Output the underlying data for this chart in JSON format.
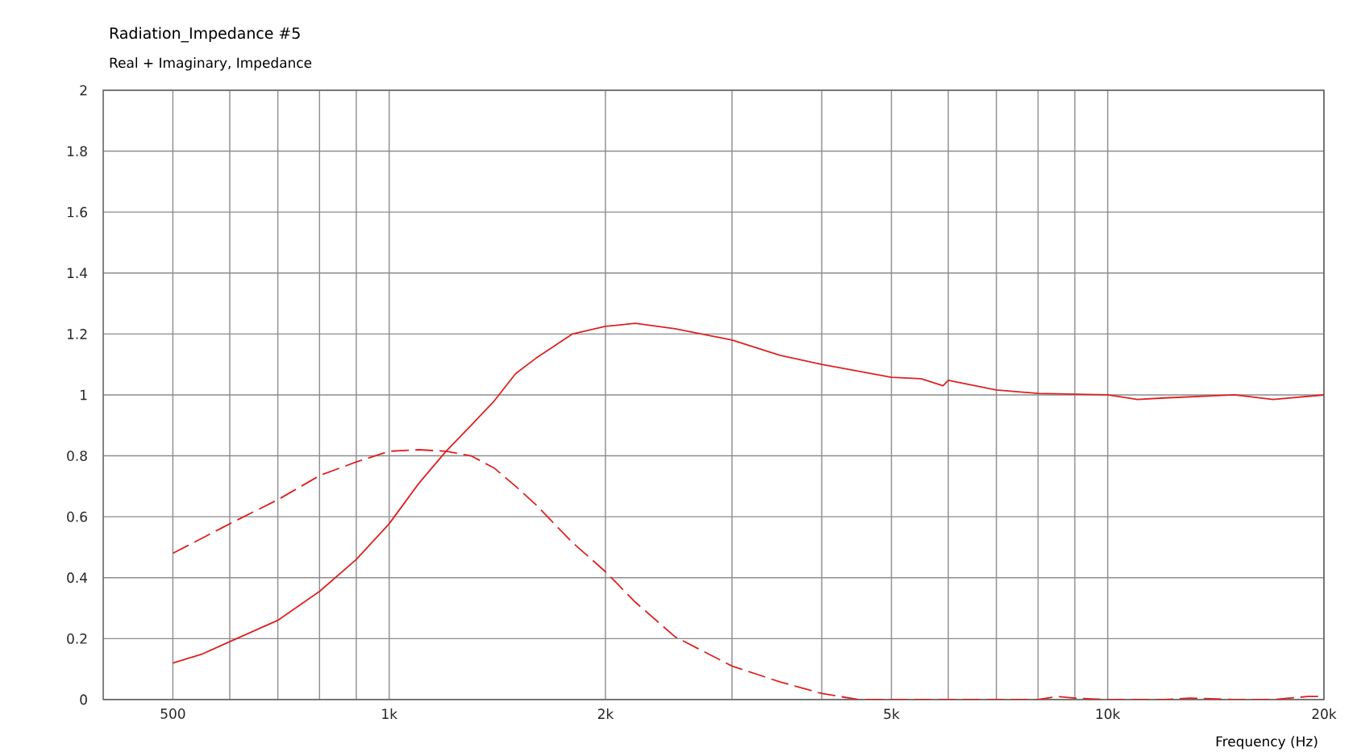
{
  "chart_data": {
    "type": "line",
    "title": "Radiation_Impedance #5",
    "subtitle": "Real + Imaginary, Impedance",
    "xlabel": "Frequency  (Hz)",
    "log": "x",
    "grid": true,
    "marker": "none",
    "xlim": [
      400,
      20000
    ],
    "ylim": [
      0,
      2
    ],
    "xticks": [
      {
        "value": 500,
        "label": "500"
      },
      {
        "value": 600,
        "label": null
      },
      {
        "value": 700,
        "label": null
      },
      {
        "value": 800,
        "label": null
      },
      {
        "value": 900,
        "label": null
      },
      {
        "value": 1000,
        "label": "1k"
      },
      {
        "value": 2000,
        "label": "2k"
      },
      {
        "value": 3000,
        "label": null
      },
      {
        "value": 4000,
        "label": null
      },
      {
        "value": 5000,
        "label": "5k"
      },
      {
        "value": 6000,
        "label": null
      },
      {
        "value": 7000,
        "label": null
      },
      {
        "value": 8000,
        "label": null
      },
      {
        "value": 9000,
        "label": null
      },
      {
        "value": 10000,
        "label": "10k"
      },
      {
        "value": 20000,
        "label": "20k"
      }
    ],
    "yticks": [
      0,
      0.2,
      0.4,
      0.6,
      0.8,
      1,
      1.2,
      1.4,
      1.6,
      1.8,
      2
    ],
    "series": [
      {
        "color": "#dd2222",
        "line_style": "solid",
        "x": [
          500,
          550,
          600,
          700,
          800,
          900,
          1000,
          1100,
          1200,
          1300,
          1400,
          1500,
          1600,
          1800,
          2000,
          2200,
          2500,
          3000,
          3500,
          4000,
          5000,
          5500,
          5900,
          6000,
          7000,
          8000,
          10000,
          11000,
          12000,
          15000,
          17000,
          20000
        ],
        "values": [
          0.12,
          0.15,
          0.19,
          0.26,
          0.355,
          0.46,
          0.577,
          0.71,
          0.815,
          0.9,
          0.98,
          1.07,
          1.12,
          1.2,
          1.225,
          1.235,
          1.217,
          1.18,
          1.13,
          1.1,
          1.058,
          1.053,
          1.03,
          1.048,
          1.016,
          1.005,
          1.0,
          0.985,
          0.99,
          1.0,
          0.985,
          1.0
        ]
      },
      {
        "color": "#dd2222",
        "line_style": "dashed",
        "x": [
          500,
          600,
          700,
          800,
          900,
          1000,
          1100,
          1200,
          1300,
          1400,
          1500,
          1600,
          1800,
          2000,
          2200,
          2500,
          3000,
          3500,
          4000,
          4500,
          5000,
          8000,
          8500,
          9000,
          10000,
          12000,
          13000,
          15000,
          17000,
          19000,
          20000
        ],
        "values": [
          0.48,
          0.577,
          0.656,
          0.735,
          0.78,
          0.815,
          0.82,
          0.815,
          0.8,
          0.76,
          0.7,
          0.64,
          0.515,
          0.42,
          0.32,
          0.206,
          0.11,
          0.058,
          0.02,
          0.0,
          0.0,
          0.0,
          0.01,
          0.005,
          0.0,
          0.0,
          0.005,
          0.0,
          0.0,
          0.01,
          0.01
        ]
      }
    ]
  }
}
